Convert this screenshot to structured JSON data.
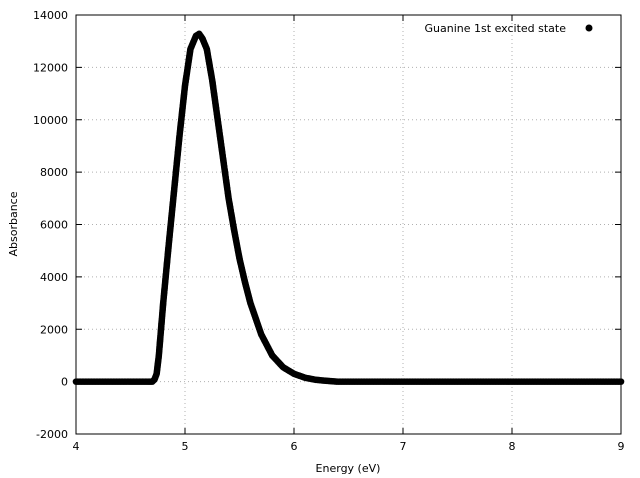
{
  "chart_data": {
    "type": "scatter",
    "xlabel": "Energy (eV)",
    "ylabel": "Absorbance",
    "xlim": [
      4,
      9
    ],
    "ylim": [
      -2000,
      14000
    ],
    "x_ticks": [
      4,
      5,
      6,
      7,
      8,
      9
    ],
    "y_ticks": [
      -2000,
      0,
      2000,
      4000,
      6000,
      8000,
      10000,
      12000,
      14000
    ],
    "grid": true,
    "legend_position": "top-right",
    "series": [
      {
        "name": "Guanine 1st excited state",
        "color": "#000000",
        "marker": "filled-circle",
        "points": [
          [
            4.0,
            0
          ],
          [
            4.5,
            0
          ],
          [
            4.65,
            0
          ],
          [
            4.7,
            0
          ],
          [
            4.72,
            80
          ],
          [
            4.74,
            300
          ],
          [
            4.76,
            1000
          ],
          [
            4.78,
            2000
          ],
          [
            4.8,
            3000
          ],
          [
            4.85,
            5200
          ],
          [
            4.9,
            7300
          ],
          [
            4.95,
            9400
          ],
          [
            5.0,
            11300
          ],
          [
            5.05,
            12700
          ],
          [
            5.1,
            13200
          ],
          [
            5.13,
            13280
          ],
          [
            5.16,
            13100
          ],
          [
            5.2,
            12700
          ],
          [
            5.25,
            11500
          ],
          [
            5.3,
            10000
          ],
          [
            5.35,
            8500
          ],
          [
            5.4,
            7000
          ],
          [
            5.45,
            5800
          ],
          [
            5.5,
            4700
          ],
          [
            5.55,
            3800
          ],
          [
            5.6,
            3000
          ],
          [
            5.7,
            1800
          ],
          [
            5.8,
            1000
          ],
          [
            5.9,
            550
          ],
          [
            6.0,
            300
          ],
          [
            6.1,
            150
          ],
          [
            6.2,
            70
          ],
          [
            6.3,
            30
          ],
          [
            6.4,
            0
          ],
          [
            7.0,
            0
          ],
          [
            8.0,
            0
          ],
          [
            9.0,
            0
          ]
        ]
      }
    ]
  }
}
